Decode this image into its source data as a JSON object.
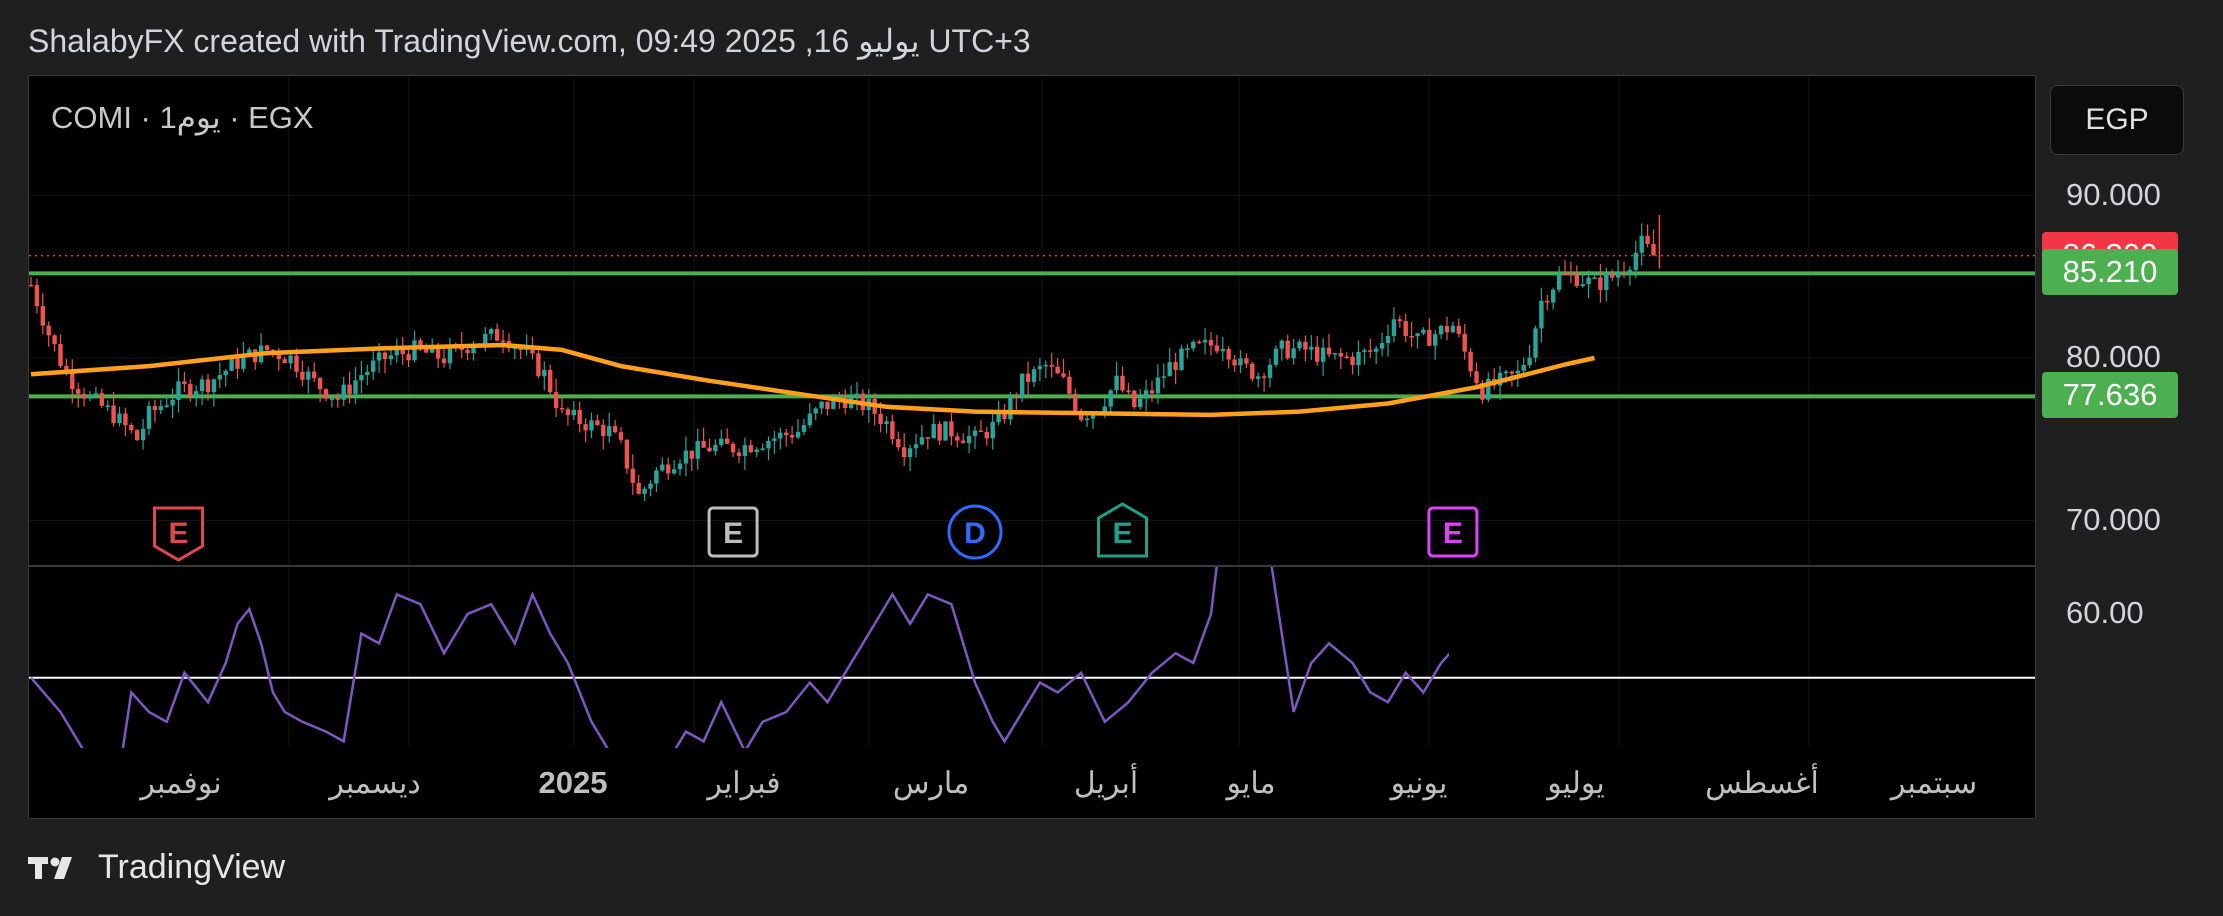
{
  "header": {
    "title": "ShalabyFX created with TradingView.com, 09:49 2025 ,16 يوليو UTC+3"
  },
  "symbol": {
    "label": "COMI · 1يوم · EGX"
  },
  "currency": {
    "label": "EGP"
  },
  "footer": {
    "brand": "TradingView"
  },
  "colors": {
    "up": "#26a69a",
    "down": "#ef5350",
    "ma": "#ff9f1c",
    "level": "#4caf50",
    "rsi": "#7e57c2",
    "bg": "#000000"
  },
  "chart_data": {
    "type": "candlestick",
    "title": "",
    "price_axis": {
      "ylim": [
        66.5,
        94.0
      ],
      "ticks": [
        "90.000",
        "80.000",
        "70.000"
      ]
    },
    "rsi_axis": {
      "ticks": [
        "60.00"
      ],
      "ref_line": 53.5
    },
    "x_labels": [
      "نوفمبر",
      "ديسمبر",
      "2025",
      "فبراير",
      "مارس",
      "أبريل",
      "مايو",
      "يونيو",
      "يوليو",
      "أغسطس",
      "سبتمبر"
    ],
    "price_badges": [
      {
        "label": "86.300",
        "value": 86.3,
        "color": "#f23645"
      },
      {
        "label": "85.210",
        "value": 85.21,
        "color": "#4caf50"
      },
      {
        "label": "77.636",
        "value": 77.636,
        "color": "#4caf50"
      }
    ],
    "levels": [
      85.21,
      77.636
    ],
    "last_price": 86.3,
    "close_anchors": [
      [
        0,
        84.5
      ],
      [
        3,
        81.5
      ],
      [
        6,
        79
      ],
      [
        10,
        77.5
      ],
      [
        14,
        76.5
      ],
      [
        18,
        75
      ],
      [
        20,
        76.5
      ],
      [
        25,
        78
      ],
      [
        30,
        78.5
      ],
      [
        36,
        80
      ],
      [
        40,
        80.5
      ],
      [
        44,
        80
      ],
      [
        48,
        78.5
      ],
      [
        52,
        77.5
      ],
      [
        56,
        79
      ],
      [
        60,
        80
      ],
      [
        65,
        80.5
      ],
      [
        70,
        80
      ],
      [
        75,
        81
      ],
      [
        80,
        81.5
      ],
      [
        83,
        80.5
      ],
      [
        87,
        79
      ],
      [
        90,
        76.5
      ],
      [
        94,
        76
      ],
      [
        98,
        75.5
      ],
      [
        100,
        74.5
      ],
      [
        103,
        71.5
      ],
      [
        106,
        73
      ],
      [
        110,
        74
      ],
      [
        115,
        74.5
      ],
      [
        120,
        74.5
      ],
      [
        125,
        75
      ],
      [
        130,
        75.5
      ],
      [
        134,
        77
      ],
      [
        138,
        77.5
      ],
      [
        142,
        77
      ],
      [
        145,
        76
      ],
      [
        148,
        74.5
      ],
      [
        152,
        75.5
      ],
      [
        156,
        75.5
      ],
      [
        160,
        75
      ],
      [
        164,
        76
      ],
      [
        168,
        78.5
      ],
      [
        172,
        79.5
      ],
      [
        175,
        78.5
      ],
      [
        178,
        76.5
      ],
      [
        181,
        77
      ],
      [
        184,
        78.5
      ],
      [
        187,
        77
      ],
      [
        190,
        78
      ],
      [
        193,
        79.5
      ],
      [
        197,
        80.5
      ],
      [
        202,
        81
      ],
      [
        205,
        79.5
      ],
      [
        208,
        79
      ],
      [
        212,
        80.5
      ],
      [
        216,
        80.5
      ],
      [
        220,
        80
      ],
      [
        224,
        80
      ],
      [
        228,
        80.5
      ],
      [
        231,
        82.5
      ],
      [
        235,
        81
      ],
      [
        238,
        81.5
      ],
      [
        241,
        82
      ],
      [
        244,
        79.5
      ],
      [
        246,
        78
      ],
      [
        249,
        78.5
      ],
      [
        252,
        79
      ],
      [
        254,
        80.5
      ],
      [
        256,
        83.5
      ],
      [
        259,
        85
      ],
      [
        262,
        85
      ],
      [
        265,
        84.5
      ],
      [
        268,
        85
      ],
      [
        271,
        86
      ],
      [
        273,
        87
      ],
      [
        275,
        86.3
      ]
    ],
    "ma_points": [
      [
        0,
        79
      ],
      [
        20,
        79.5
      ],
      [
        40,
        80.3
      ],
      [
        60,
        80.6
      ],
      [
        80,
        80.8
      ],
      [
        90,
        80.5
      ],
      [
        100,
        79.5
      ],
      [
        115,
        78.6
      ],
      [
        130,
        77.8
      ],
      [
        145,
        77
      ],
      [
        160,
        76.7
      ],
      [
        180,
        76.6
      ],
      [
        200,
        76.5
      ],
      [
        215,
        76.7
      ],
      [
        230,
        77.2
      ],
      [
        245,
        78.2
      ],
      [
        260,
        79.6
      ],
      [
        265,
        80
      ]
    ],
    "rsi_points": [
      [
        0,
        53.5
      ],
      [
        5,
        50
      ],
      [
        10,
        45
      ],
      [
        15,
        44
      ],
      [
        17,
        52
      ],
      [
        20,
        50
      ],
      [
        23,
        49
      ],
      [
        26,
        54
      ],
      [
        30,
        51
      ],
      [
        33,
        55
      ],
      [
        35,
        59
      ],
      [
        37,
        60.5
      ],
      [
        39,
        57
      ],
      [
        41,
        52
      ],
      [
        43,
        50
      ],
      [
        46,
        49
      ],
      [
        50,
        48
      ],
      [
        53,
        47
      ],
      [
        56,
        58
      ],
      [
        59,
        57
      ],
      [
        62,
        62
      ],
      [
        66,
        61
      ],
      [
        70,
        56
      ],
      [
        74,
        60
      ],
      [
        78,
        61
      ],
      [
        82,
        57
      ],
      [
        85,
        62
      ],
      [
        88,
        58
      ],
      [
        91,
        55
      ],
      [
        95,
        49
      ],
      [
        99,
        45
      ],
      [
        102,
        43
      ],
      [
        105,
        41
      ],
      [
        108,
        45
      ],
      [
        111,
        48
      ],
      [
        114,
        47
      ],
      [
        117,
        51
      ],
      [
        121,
        46
      ],
      [
        124,
        49
      ],
      [
        128,
        50
      ],
      [
        132,
        53
      ],
      [
        135,
        51
      ],
      [
        138,
        54
      ],
      [
        142,
        58
      ],
      [
        146,
        62
      ],
      [
        149,
        59
      ],
      [
        152,
        62
      ],
      [
        156,
        61
      ],
      [
        160,
        53
      ],
      [
        163,
        49
      ],
      [
        165,
        47
      ],
      [
        168,
        50
      ],
      [
        171,
        53
      ],
      [
        174,
        52
      ],
      [
        178,
        54
      ],
      [
        182,
        49
      ],
      [
        186,
        51
      ],
      [
        190,
        54
      ],
      [
        194,
        56
      ],
      [
        197,
        55
      ],
      [
        200,
        60
      ],
      [
        202,
        70
      ],
      [
        205,
        69
      ],
      [
        208,
        71
      ],
      [
        210,
        66
      ],
      [
        212,
        58
      ],
      [
        214,
        50
      ],
      [
        217,
        55
      ],
      [
        220,
        57
      ],
      [
        224,
        55
      ],
      [
        227,
        52
      ],
      [
        230,
        51
      ],
      [
        233,
        54
      ],
      [
        236,
        52
      ],
      [
        239,
        55
      ],
      [
        242,
        57
      ],
      [
        245,
        50
      ],
      [
        248,
        52
      ],
      [
        252,
        57
      ],
      [
        256,
        60
      ],
      [
        260,
        62
      ],
      [
        264,
        59
      ],
      [
        268,
        61
      ],
      [
        272,
        58
      ],
      [
        275,
        63
      ],
      [
        277,
        61
      ]
    ],
    "events": [
      {
        "label": "E",
        "bar": 25,
        "shape": "shield",
        "color": "#e0474c"
      },
      {
        "label": "E",
        "bar": 119,
        "shape": "square",
        "color": "#bdbdbd"
      },
      {
        "label": "D",
        "bar": 160,
        "shape": "circle",
        "color": "#2f6bff"
      },
      {
        "label": "E",
        "bar": 185,
        "shape": "house",
        "color": "#1f9e89"
      },
      {
        "label": "E",
        "bar": 241,
        "shape": "square",
        "color": "#e040fb"
      }
    ]
  }
}
